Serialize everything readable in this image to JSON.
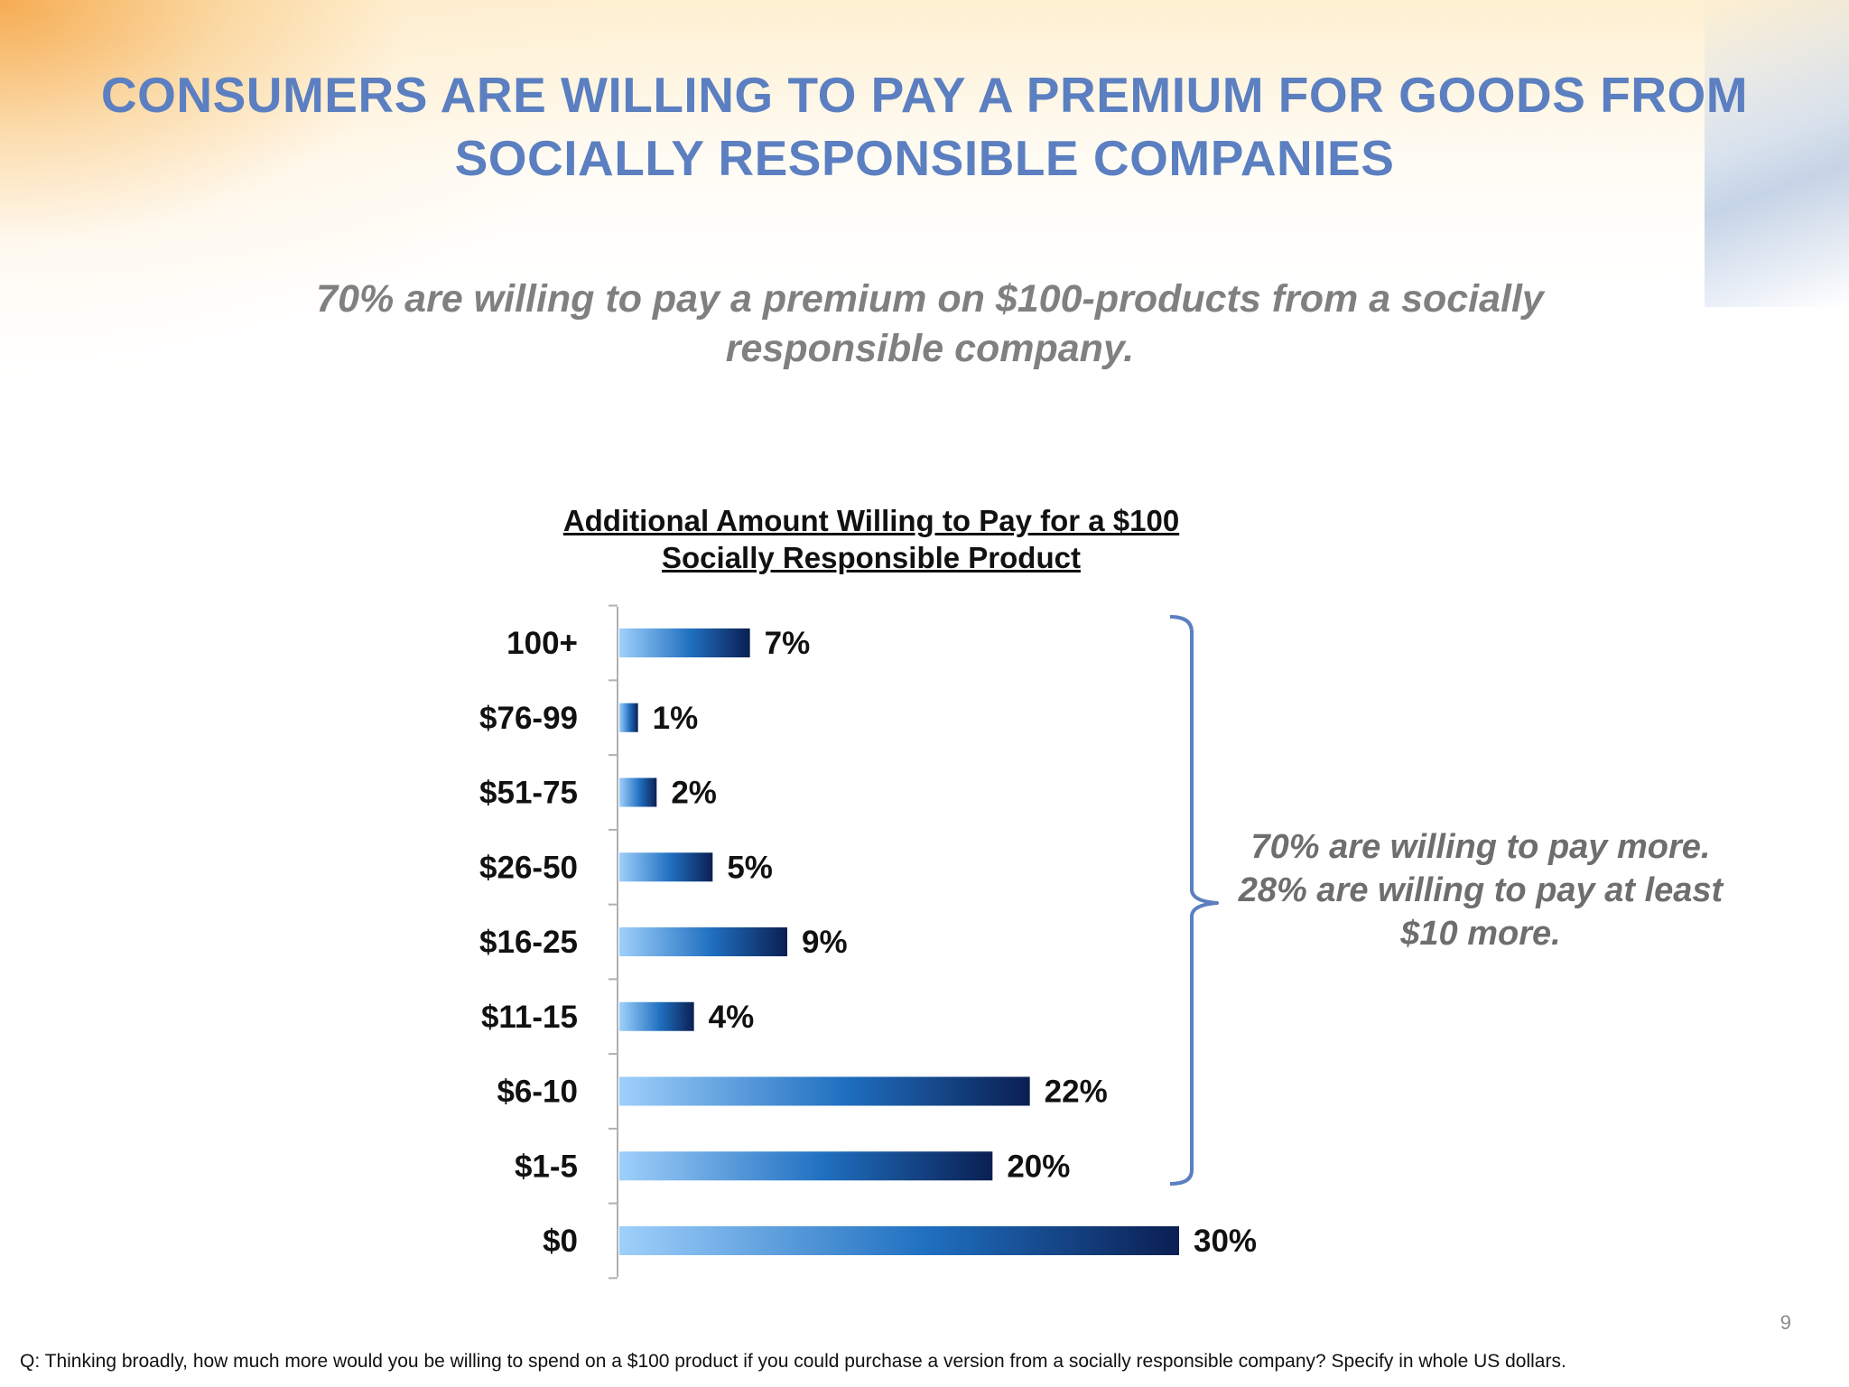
{
  "slide": {
    "title": "CONSUMERS ARE WILLING TO PAY A PREMIUM FOR GOODS FROM SOCIALLY RESPONSIBLE COMPANIES",
    "subtitle": "70% are willing to pay a premium on $100-products from a socially responsible company.",
    "callout": "70% are willing to pay more. 28% are willing to pay at least $10 more.",
    "page_number": "9",
    "footnote": "Q: Thinking broadly, how much more would you be willing to spend on a $100 product if you could purchase a version from a socially responsible company? Specify in whole US dollars."
  },
  "colors": {
    "title": "#5b7fc0",
    "bar_light": "#9fd0fb",
    "bar_mid": "#1f6fc0",
    "bar_dark": "#0b1f52",
    "bracket": "#5b7fc0"
  },
  "chart_data": {
    "type": "bar",
    "orientation": "horizontal",
    "title": "Additional Amount Willing to Pay for a $100 Socially Responsible Product",
    "categories": [
      "100+",
      "$76-99",
      "$51-75",
      "$26-50",
      "$16-25",
      "$11-15",
      "$6-10",
      "$1-5",
      "$0"
    ],
    "values": [
      7,
      1,
      2,
      5,
      9,
      4,
      22,
      20,
      30
    ],
    "value_labels": [
      "7%",
      "1%",
      "2%",
      "5%",
      "9%",
      "4%",
      "22%",
      "20%",
      "30%"
    ],
    "unit": "%",
    "xlim": [
      0,
      30
    ],
    "grid": false,
    "legend": "none"
  }
}
